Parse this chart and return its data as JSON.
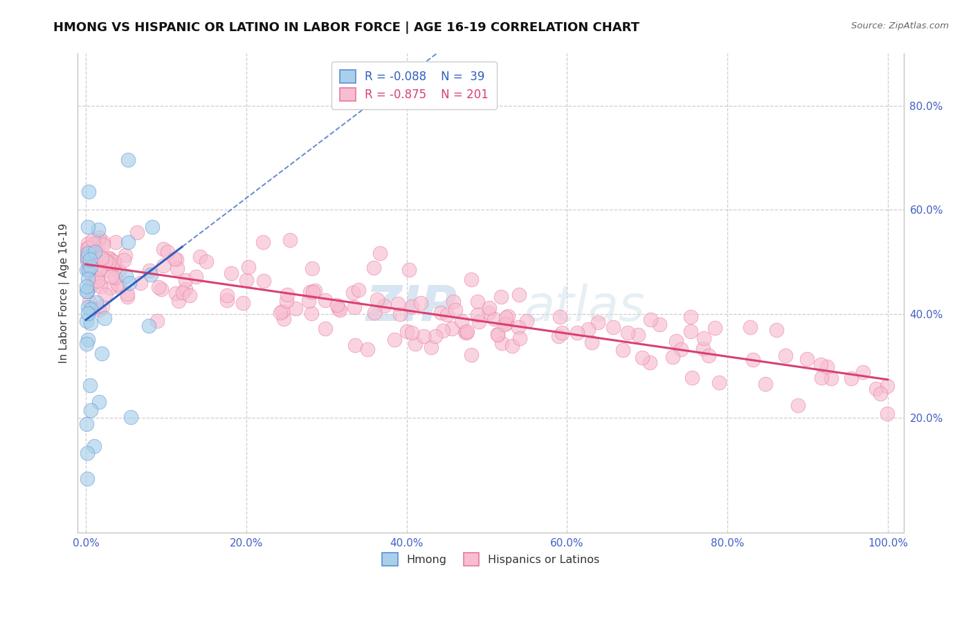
{
  "title": "HMONG VS HISPANIC OR LATINO IN LABOR FORCE | AGE 16-19 CORRELATION CHART",
  "source": "Source: ZipAtlas.com",
  "ylabel": "In Labor Force | Age 16-19",
  "xlim": [
    -0.01,
    1.02
  ],
  "ylim": [
    -0.02,
    0.9
  ],
  "xtick_positions": [
    0.0,
    0.2,
    0.4,
    0.6,
    0.8,
    1.0
  ],
  "xticklabels": [
    "0.0%",
    "20.0%",
    "40.0%",
    "60.0%",
    "80.0%",
    "100.0%"
  ],
  "ytick_positions": [
    0.2,
    0.4,
    0.6,
    0.8
  ],
  "yticklabels": [
    "20.0%",
    "40.0%",
    "60.0%",
    "80.0%"
  ],
  "grid_color": "#c8c8c8",
  "background_color": "#ffffff",
  "hmong_scatter_color": "#a8d0ea",
  "hmong_scatter_edge": "#5b8ed6",
  "hispanic_scatter_color": "#f7bdd0",
  "hispanic_scatter_edge": "#e8799a",
  "hmong_line_color": "#3060c0",
  "hispanic_line_color": "#d94070",
  "hmong_R": -0.088,
  "hmong_N": 39,
  "hispanic_R": -0.875,
  "hispanic_N": 201,
  "title_fontsize": 13,
  "axis_label_fontsize": 11,
  "tick_fontsize": 11,
  "legend_fontsize": 12,
  "watermark_color": "#c5d8ec",
  "watermark_color2": "#c8dbe8"
}
